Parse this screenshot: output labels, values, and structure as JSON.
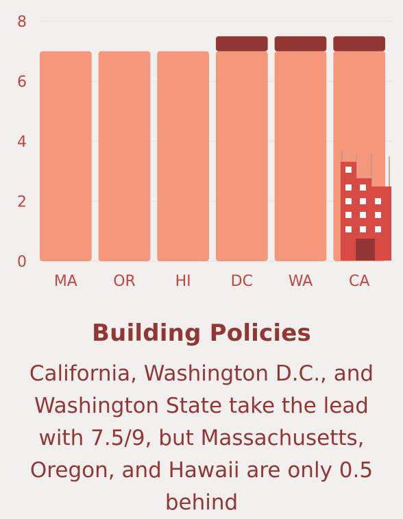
{
  "chart_data": {
    "type": "bar",
    "stacked": true,
    "categories": [
      "MA",
      "OR",
      "HI",
      "DC",
      "WA",
      "CA"
    ],
    "series": [
      {
        "values": [
          7,
          7,
          7,
          7,
          7,
          7
        ],
        "color": "#f4977b"
      },
      {
        "values": [
          0,
          0,
          0,
          0.5,
          0.5,
          0.5
        ],
        "color": "#933735"
      }
    ],
    "yticks": [
      0,
      2,
      4,
      6,
      8
    ],
    "ylim": [
      0,
      8
    ],
    "grid": true,
    "decoration": "building-icon"
  },
  "text": {
    "title": "Building Policies",
    "description": "California, Washington D.C., and Washington State take the lead with 7.5/9, but Massachusetts, Oregon, and Hawaii are only 0.5 behind"
  },
  "colors": {
    "background": "#f1f0ee",
    "bar": "#f4977b",
    "bar_top": "#933735",
    "text": "#933735",
    "axis_text": "#c0463f",
    "building": "#d94a45",
    "building_dark": "#933735"
  }
}
